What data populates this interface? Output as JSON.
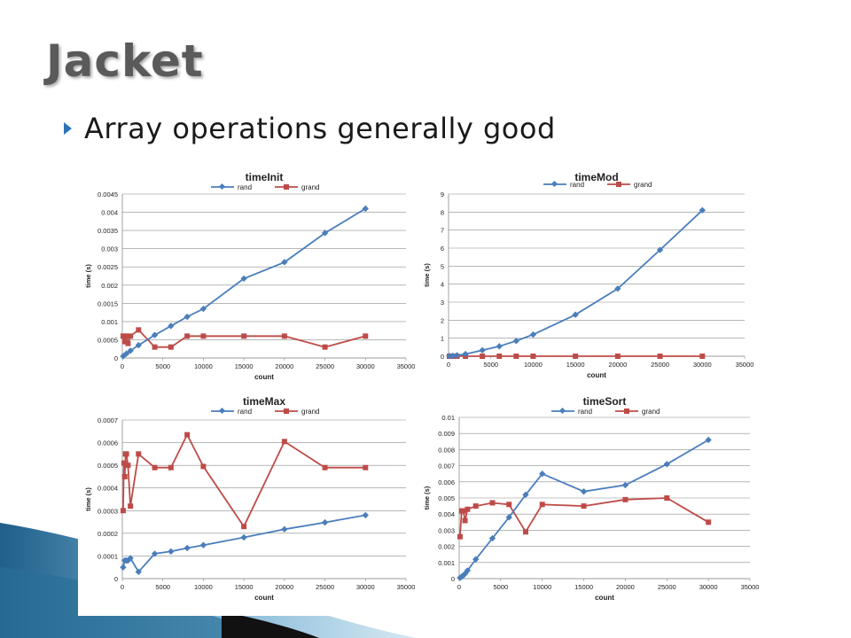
{
  "slide": {
    "title": "Jacket",
    "bullet": "Array operations generally good"
  },
  "colors": {
    "rand": "#4a7ebb",
    "grand": "#be4b48",
    "title": "#5a5a5a",
    "bullet_icon": "#2e74b5"
  },
  "chart_data": [
    {
      "type": "line",
      "title": "timeInit",
      "xlabel": "count",
      "ylabel": "time (s)",
      "xlim": [
        0,
        35000
      ],
      "ylim": [
        0,
        0.0045
      ],
      "x_ticks": [
        "0",
        "5000",
        "10000",
        "15000",
        "20000",
        "25000",
        "30000",
        "35000"
      ],
      "y_ticks": [
        "0",
        "0.0005",
        "0.001",
        "0.0015",
        "0.002",
        "0.0025",
        "0.003",
        "0.0035",
        "0.004",
        "0.0045"
      ],
      "legend": "top",
      "series": [
        {
          "name": "rand",
          "marker": "diamond",
          "x": [
            100,
            500,
            1000,
            2000,
            4000,
            6000,
            8000,
            10000,
            15000,
            20000,
            25000,
            30000
          ],
          "y": [
            5e-05,
            0.00012,
            0.0002,
            0.00035,
            0.00063,
            0.00088,
            0.00113,
            0.00135,
            0.00218,
            0.00263,
            0.00343,
            0.0041
          ]
        },
        {
          "name": "grand",
          "marker": "square",
          "x": [
            100,
            300,
            500,
            700,
            1000,
            2000,
            4000,
            6000,
            8000,
            10000,
            15000,
            20000,
            25000,
            30000
          ],
          "y": [
            0.0006,
            0.00045,
            0.0006,
            0.0004,
            0.0006,
            0.00077,
            0.0003,
            0.0003,
            0.0006,
            0.0006,
            0.0006,
            0.0006,
            0.0003,
            0.0006
          ]
        }
      ]
    },
    {
      "type": "line",
      "title": "timeMod",
      "xlabel": "count",
      "ylabel": "time (s)",
      "xlim": [
        0,
        35000
      ],
      "ylim": [
        0,
        9
      ],
      "x_ticks": [
        "0",
        "5000",
        "10000",
        "15000",
        "20000",
        "25000",
        "30000",
        "35000"
      ],
      "y_ticks": [
        "0",
        "1",
        "2",
        "3",
        "4",
        "5",
        "6",
        "7",
        "8",
        "9"
      ],
      "legend": "top",
      "series": [
        {
          "name": "rand",
          "marker": "diamond",
          "x": [
            100,
            500,
            1000,
            2000,
            4000,
            6000,
            8000,
            10000,
            15000,
            20000,
            25000,
            30000
          ],
          "y": [
            0.01,
            0.02,
            0.05,
            0.12,
            0.33,
            0.55,
            0.85,
            1.2,
            2.3,
            3.75,
            5.9,
            8.1
          ]
        },
        {
          "name": "grand",
          "marker": "square",
          "x": [
            100,
            500,
            1000,
            2000,
            4000,
            6000,
            8000,
            10000,
            15000,
            20000,
            25000,
            30000
          ],
          "y": [
            0,
            0,
            0,
            0,
            0,
            0,
            0,
            0,
            0,
            0,
            0,
            0
          ]
        }
      ]
    },
    {
      "type": "line",
      "title": "timeMax",
      "xlabel": "count",
      "ylabel": "time (s)",
      "xlim": [
        0,
        35000
      ],
      "ylim": [
        0,
        0.0007
      ],
      "x_ticks": [
        "0",
        "5000",
        "10000",
        "15000",
        "20000",
        "25000",
        "30000",
        "35000"
      ],
      "y_ticks": [
        "0",
        "0.0001",
        "0.0002",
        "0.0003",
        "0.0004",
        "0.0005",
        "0.0006",
        "0.0007"
      ],
      "legend": "top",
      "series": [
        {
          "name": "rand",
          "marker": "diamond",
          "x": [
            100,
            300,
            500,
            700,
            1000,
            2000,
            4000,
            6000,
            8000,
            10000,
            15000,
            20000,
            25000,
            30000
          ],
          "y": [
            5e-05,
            8e-05,
            8e-05,
            8e-05,
            9e-05,
            3e-05,
            0.00011,
            0.00012,
            0.000135,
            0.000148,
            0.000182,
            0.000218,
            0.000248,
            0.00028
          ]
        },
        {
          "name": "grand",
          "marker": "square",
          "x": [
            100,
            200,
            300,
            400,
            500,
            700,
            1000,
            2000,
            4000,
            6000,
            8000,
            10000,
            15000,
            20000,
            25000,
            30000
          ],
          "y": [
            0.0003,
            0.00051,
            0.00045,
            0.00055,
            0.00055,
            0.0005,
            0.00032,
            0.00055,
            0.00049,
            0.00049,
            0.000635,
            0.000495,
            0.00023,
            0.000605,
            0.00049,
            0.00049
          ]
        }
      ]
    },
    {
      "type": "line",
      "title": "timeSort",
      "xlabel": "count",
      "ylabel": "time (s)",
      "xlim": [
        0,
        35000
      ],
      "ylim": [
        0,
        0.01
      ],
      "x_ticks": [
        "0",
        "5000",
        "10000",
        "15000",
        "20000",
        "25000",
        "30000",
        "35000"
      ],
      "y_ticks": [
        "0",
        "0.001",
        "0.002",
        "0.003",
        "0.004",
        "0.005",
        "0.006",
        "0.007",
        "0.008",
        "0.009",
        "0.01"
      ],
      "legend": "top",
      "series": [
        {
          "name": "rand",
          "marker": "diamond",
          "x": [
            100,
            300,
            500,
            700,
            1000,
            2000,
            4000,
            6000,
            8000,
            10000,
            15000,
            20000,
            25000,
            30000
          ],
          "y": [
            5e-05,
            0.00012,
            0.0002,
            0.0003,
            0.0005,
            0.0012,
            0.0025,
            0.0038,
            0.0052,
            0.0065,
            0.0054,
            0.0058,
            0.0071,
            0.0086
          ]
        },
        {
          "name": "grand",
          "marker": "square",
          "x": [
            100,
            300,
            500,
            700,
            1000,
            2000,
            4000,
            6000,
            8000,
            10000,
            15000,
            20000,
            25000,
            30000
          ],
          "y": [
            0.0026,
            0.0042,
            0.0042,
            0.0036,
            0.0043,
            0.0045,
            0.0047,
            0.0046,
            0.0029,
            0.0046,
            0.0045,
            0.0049,
            0.005,
            0.0035
          ]
        }
      ]
    }
  ]
}
